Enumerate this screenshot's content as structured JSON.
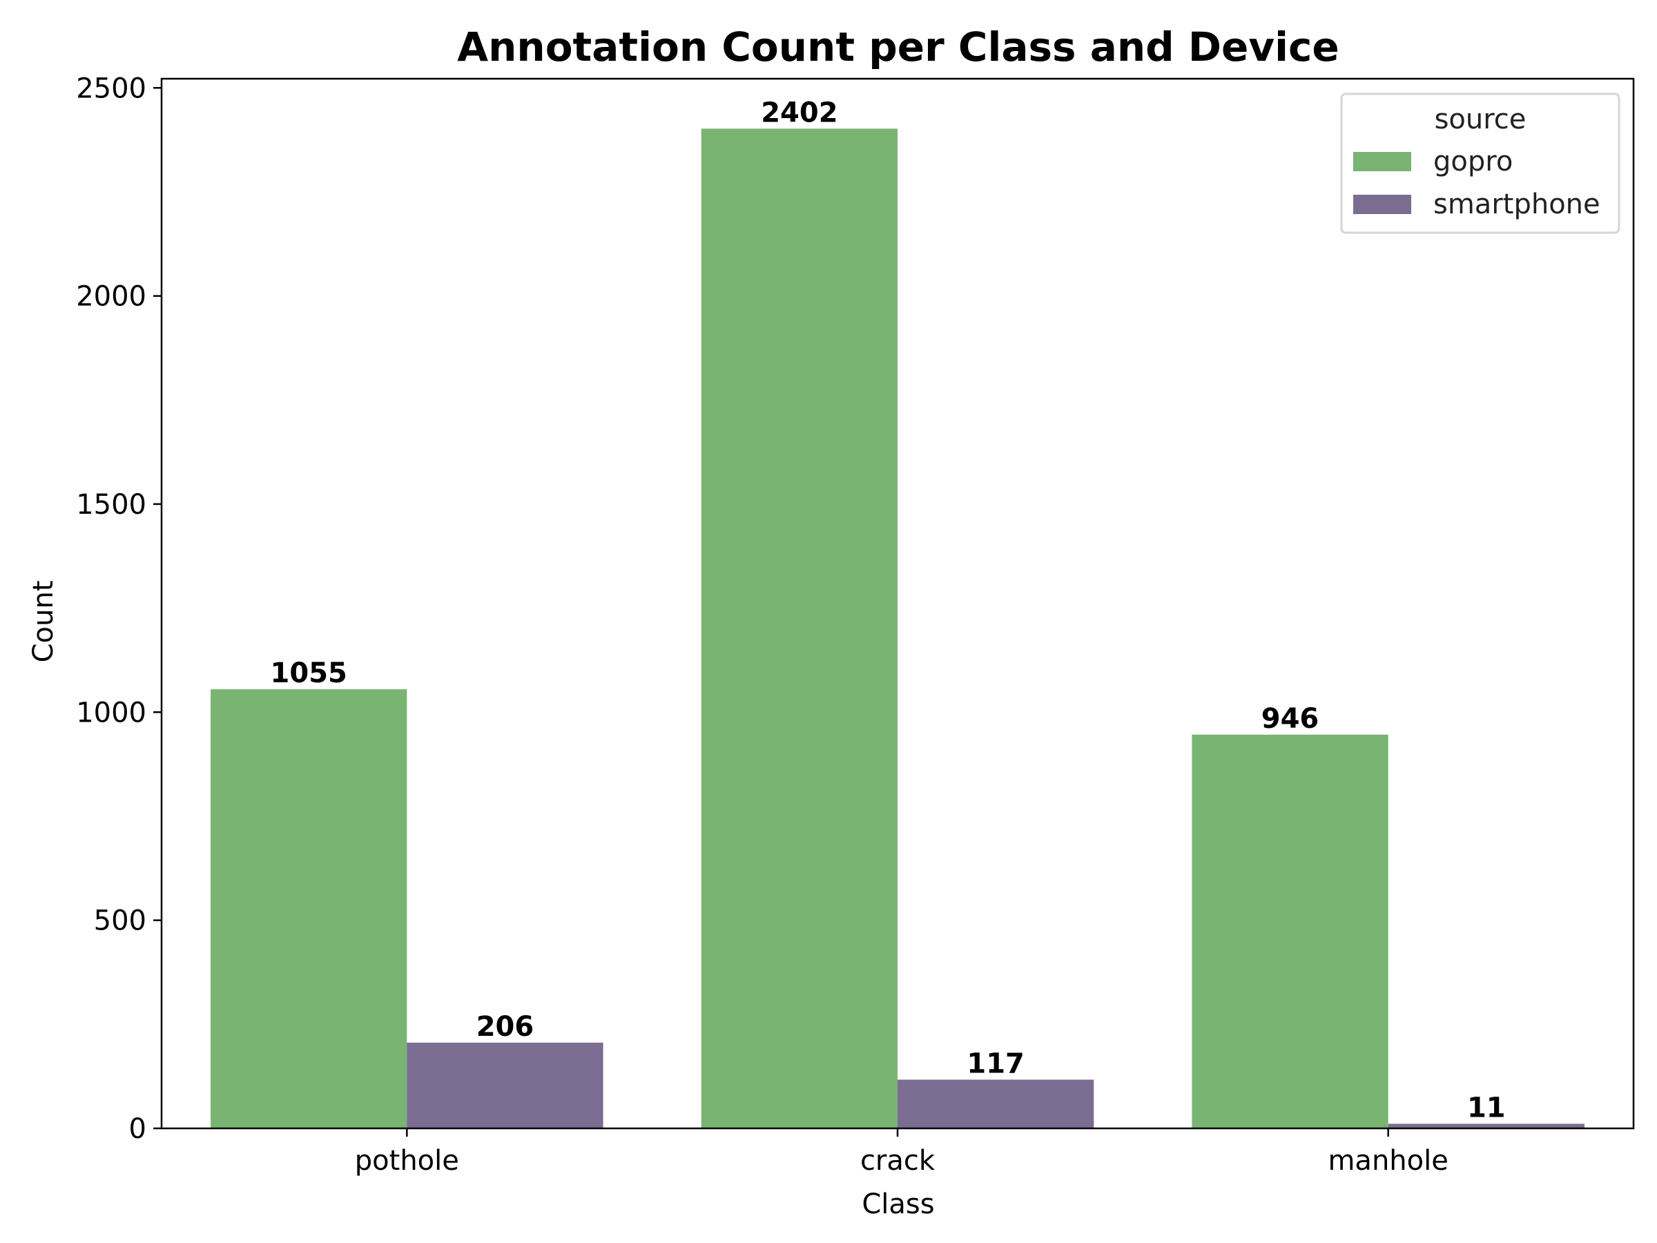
{
  "chart_data": {
    "type": "bar",
    "title": "Annotation Count per Class and Device",
    "xlabel": "Class",
    "ylabel": "Count",
    "categories": [
      "pothole",
      "crack",
      "manhole"
    ],
    "series": [
      {
        "name": "gopro",
        "values": [
          1055,
          2402,
          946
        ],
        "color": "#79b473"
      },
      {
        "name": "smartphone",
        "values": [
          206,
          117,
          11
        ],
        "color": "#7b6c91"
      }
    ],
    "ylim": [
      0,
      2522
    ],
    "yticks": [
      0,
      500,
      1000,
      1500,
      2000,
      2500
    ],
    "legend": {
      "title": "source",
      "placement": "top-right"
    },
    "grid": false
  }
}
